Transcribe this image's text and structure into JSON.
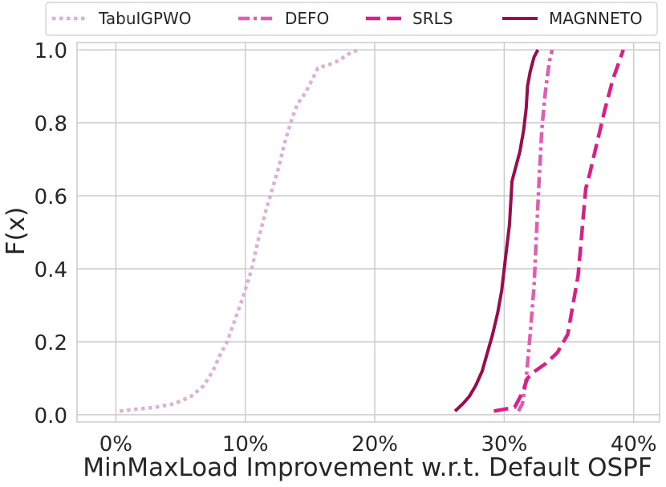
{
  "chart_data": {
    "type": "line",
    "xlabel": "MinMaxLoad Improvement w.r.t. Default OSPF",
    "ylabel": "F(x)",
    "xlim": [
      -3,
      42
    ],
    "ylim": [
      -0.02,
      1.02
    ],
    "xticks": [
      0,
      10,
      20,
      30,
      40
    ],
    "xtick_labels": [
      "0%",
      "10%",
      "20%",
      "30%",
      "40%"
    ],
    "yticks": [
      0.0,
      0.2,
      0.4,
      0.6,
      0.8,
      1.0
    ],
    "ytick_labels": [
      "0.0",
      "0.2",
      "0.4",
      "0.6",
      "0.8",
      "1.0"
    ],
    "grid": true,
    "legend_position": "top",
    "series": [
      {
        "name": "TabuIGPWO",
        "color": "#ddb1d6",
        "dash": "dotted",
        "x": [
          0.3,
          1.5,
          3.0,
          4.5,
          5.8,
          6.8,
          7.5,
          8.0,
          8.6,
          9.2,
          9.8,
          10.5,
          11.0,
          11.6,
          12.1,
          12.6,
          13.0,
          13.5,
          14.0,
          14.6,
          15.2,
          15.6,
          16.5,
          17.2,
          17.8,
          18.3,
          18.8
        ],
        "y": [
          0.01,
          0.015,
          0.02,
          0.03,
          0.05,
          0.08,
          0.12,
          0.16,
          0.2,
          0.26,
          0.32,
          0.4,
          0.48,
          0.56,
          0.62,
          0.68,
          0.74,
          0.8,
          0.85,
          0.88,
          0.92,
          0.95,
          0.96,
          0.97,
          0.985,
          0.995,
          1.0
        ]
      },
      {
        "name": "DEFO",
        "color": "#e05db3",
        "dash": "dashdot",
        "x": [
          31.1,
          31.4,
          31.7,
          32.0,
          32.3,
          32.5,
          32.7,
          32.9,
          33.1,
          33.3,
          33.5,
          33.7
        ],
        "y": [
          0.01,
          0.03,
          0.1,
          0.22,
          0.35,
          0.5,
          0.65,
          0.78,
          0.86,
          0.92,
          0.97,
          1.0
        ]
      },
      {
        "name": "SRLS",
        "color": "#dd1e88",
        "dash": "dashed",
        "x": [
          29.2,
          30.8,
          31.4,
          31.8,
          32.4,
          33.2,
          34.1,
          34.9,
          35.3,
          35.7,
          35.9,
          36.1,
          36.3,
          36.6,
          37.0,
          37.4,
          37.8,
          38.1,
          38.4,
          38.8,
          39.1,
          39.2
        ],
        "y": [
          0.01,
          0.02,
          0.06,
          0.1,
          0.12,
          0.14,
          0.17,
          0.22,
          0.3,
          0.38,
          0.46,
          0.54,
          0.62,
          0.66,
          0.72,
          0.78,
          0.84,
          0.88,
          0.92,
          0.96,
          0.99,
          1.0
        ]
      },
      {
        "name": "MAGNNETO",
        "color": "#9b0b4d",
        "dash": "solid",
        "x": [
          26.2,
          26.8,
          27.3,
          27.8,
          28.3,
          28.7,
          29.1,
          29.5,
          29.8,
          30.0,
          30.2,
          30.4,
          30.5,
          30.6,
          30.9,
          31.2,
          31.5,
          31.7,
          31.8,
          32.0,
          32.3,
          32.6
        ],
        "y": [
          0.01,
          0.03,
          0.05,
          0.08,
          0.12,
          0.17,
          0.22,
          0.28,
          0.34,
          0.4,
          0.46,
          0.52,
          0.58,
          0.64,
          0.68,
          0.72,
          0.78,
          0.84,
          0.9,
          0.94,
          0.98,
          1.0
        ]
      }
    ]
  }
}
